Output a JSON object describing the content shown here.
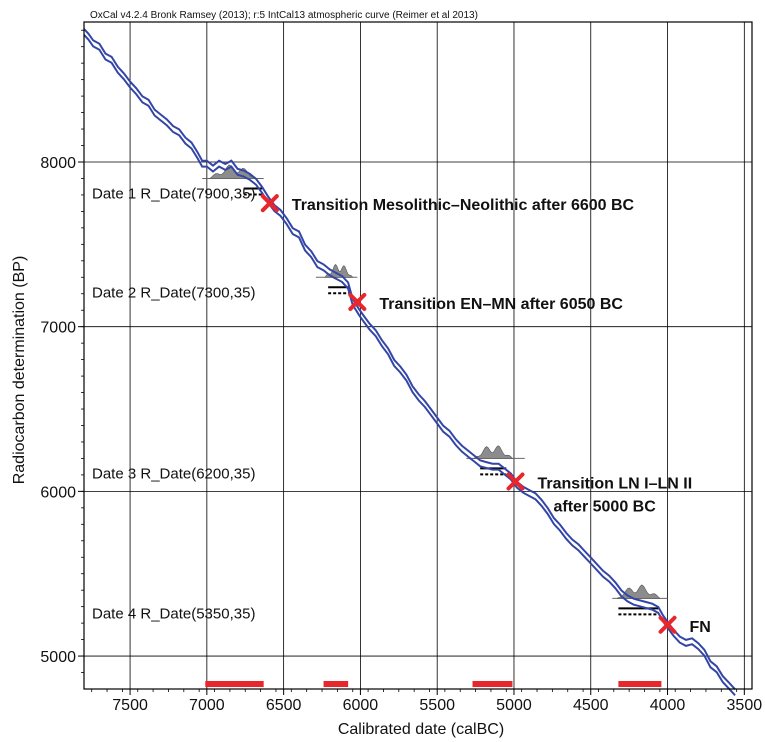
{
  "header": "OxCal v4.2.4 Bronk Ramsey (2013); r:5 IntCal13 atmospheric curve (Reimer et al 2013)",
  "chart_data": {
    "type": "line",
    "xlabel": "Calibrated date (calBC)",
    "ylabel": "Radiocarbon determination (BP)",
    "xlim": [
      7800,
      3450
    ],
    "ylim": [
      4800,
      8850
    ],
    "x_reversed": true,
    "grid": true,
    "x_ticks": [
      7500,
      7000,
      6500,
      6000,
      5500,
      5000,
      4500,
      4000,
      3500
    ],
    "y_ticks": [
      8000,
      7000,
      6000,
      5000
    ],
    "calibration_curve": {
      "color": "#3346a8",
      "points": [
        [
          7800,
          8790
        ],
        [
          7770,
          8760
        ],
        [
          7740,
          8720
        ],
        [
          7700,
          8700
        ],
        [
          7660,
          8640
        ],
        [
          7620,
          8620
        ],
        [
          7580,
          8560
        ],
        [
          7540,
          8520
        ],
        [
          7500,
          8470
        ],
        [
          7460,
          8430
        ],
        [
          7420,
          8380
        ],
        [
          7380,
          8360
        ],
        [
          7340,
          8300
        ],
        [
          7300,
          8270
        ],
        [
          7260,
          8240
        ],
        [
          7220,
          8200
        ],
        [
          7180,
          8180
        ],
        [
          7140,
          8130
        ],
        [
          7100,
          8100
        ],
        [
          7060,
          8040
        ],
        [
          7030,
          7990
        ],
        [
          7000,
          7990
        ],
        [
          6960,
          7960
        ],
        [
          6920,
          7990
        ],
        [
          6880,
          7970
        ],
        [
          6840,
          7990
        ],
        [
          6800,
          7940
        ],
        [
          6760,
          7930
        ],
        [
          6720,
          7910
        ],
        [
          6680,
          7880
        ],
        [
          6640,
          7830
        ],
        [
          6600,
          7770
        ],
        [
          6560,
          7720
        ],
        [
          6520,
          7690
        ],
        [
          6480,
          7640
        ],
        [
          6440,
          7580
        ],
        [
          6400,
          7560
        ],
        [
          6360,
          7480
        ],
        [
          6320,
          7440
        ],
        [
          6280,
          7380
        ],
        [
          6240,
          7360
        ],
        [
          6200,
          7330
        ],
        [
          6160,
          7310
        ],
        [
          6120,
          7290
        ],
        [
          6080,
          7250
        ],
        [
          6050,
          7150
        ],
        [
          6010,
          7090
        ],
        [
          5980,
          7050
        ],
        [
          5940,
          7000
        ],
        [
          5900,
          6960
        ],
        [
          5860,
          6900
        ],
        [
          5820,
          6850
        ],
        [
          5780,
          6780
        ],
        [
          5740,
          6740
        ],
        [
          5700,
          6690
        ],
        [
          5660,
          6620
        ],
        [
          5620,
          6570
        ],
        [
          5580,
          6530
        ],
        [
          5540,
          6480
        ],
        [
          5500,
          6430
        ],
        [
          5460,
          6380
        ],
        [
          5420,
          6350
        ],
        [
          5380,
          6300
        ],
        [
          5340,
          6260
        ],
        [
          5300,
          6230
        ],
        [
          5260,
          6200
        ],
        [
          5220,
          6170
        ],
        [
          5180,
          6160
        ],
        [
          5140,
          6150
        ],
        [
          5100,
          6150
        ],
        [
          5060,
          6120
        ],
        [
          5020,
          6090
        ],
        [
          4980,
          6040
        ],
        [
          4940,
          6010
        ],
        [
          4900,
          5990
        ],
        [
          4860,
          5970
        ],
        [
          4820,
          5930
        ],
        [
          4780,
          5880
        ],
        [
          4740,
          5820
        ],
        [
          4700,
          5780
        ],
        [
          4660,
          5730
        ],
        [
          4620,
          5690
        ],
        [
          4580,
          5660
        ],
        [
          4540,
          5620
        ],
        [
          4500,
          5580
        ],
        [
          4460,
          5540
        ],
        [
          4420,
          5500
        ],
        [
          4380,
          5470
        ],
        [
          4340,
          5430
        ],
        [
          4300,
          5380
        ],
        [
          4260,
          5350
        ],
        [
          4220,
          5330
        ],
        [
          4180,
          5320
        ],
        [
          4140,
          5310
        ],
        [
          4100,
          5300
        ],
        [
          4060,
          5280
        ],
        [
          4030,
          5230
        ],
        [
          4000,
          5190
        ],
        [
          3960,
          5140
        ],
        [
          3920,
          5100
        ],
        [
          3880,
          5080
        ],
        [
          3840,
          5090
        ],
        [
          3800,
          5060
        ],
        [
          3760,
          5020
        ],
        [
          3720,
          4950
        ],
        [
          3680,
          4920
        ],
        [
          3640,
          4860
        ],
        [
          3600,
          4820
        ],
        [
          3560,
          4780
        ]
      ]
    },
    "dates": [
      {
        "label": "Date 1 R_Date(7900,35)",
        "bp": 7900,
        "dist_from": 6980,
        "dist_to": 6680,
        "range_from": 7030,
        "range_to": 6630,
        "hpd_from": 6760,
        "hpd_to": 6640
      },
      {
        "label": "Date 2 R_Date(7300,35)",
        "bp": 7300,
        "dist_from": 6230,
        "dist_to": 6050,
        "range_from": 6290,
        "range_to": 6020,
        "hpd_from": 6210,
        "hpd_to": 6070
      },
      {
        "label": "Date 3 R_Date(6200,35)",
        "bp": 6200,
        "dist_from": 5260,
        "dist_to": 5010,
        "range_from": 5310,
        "range_to": 4930,
        "hpd_from": 5220,
        "hpd_to": 5050
      },
      {
        "label": "Date 4 R_Date(5350,35)",
        "bp": 5350,
        "dist_from": 4330,
        "dist_to": 4050,
        "range_from": 4360,
        "range_to": 4000,
        "hpd_from": 4320,
        "hpd_to": 4060
      }
    ],
    "transitions": [
      {
        "label": "Transition Mesolithic–Neolithic after 6600 BC",
        "label2": "",
        "x": 6590,
        "y": 7750
      },
      {
        "label": "Transition EN–MN after 6050 BC",
        "label2": "",
        "x": 6020,
        "y": 7150
      },
      {
        "label": "Transition LN I–LN II",
        "label2": "after 5000 BC",
        "x": 4990,
        "y": 6060
      },
      {
        "label": "FN",
        "label2": "",
        "x": 4000,
        "y": 5190
      }
    ],
    "phase_bars": [
      {
        "from": 7010,
        "to": 6630
      },
      {
        "from": 6240,
        "to": 6080
      },
      {
        "from": 5270,
        "to": 5010
      },
      {
        "from": 4320,
        "to": 4040
      }
    ],
    "colors": {
      "curve": "#3346a8",
      "distribution": "#8c8c8c",
      "marker": "#e8262b",
      "phase_bar": "#e8262b",
      "grid": "#000000"
    }
  }
}
